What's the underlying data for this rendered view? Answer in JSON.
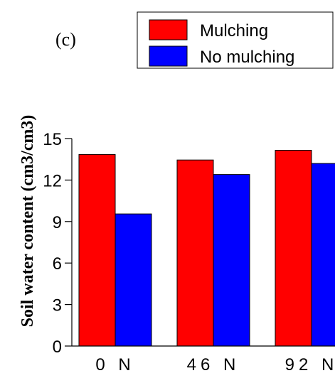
{
  "chart_data": {
    "type": "bar",
    "panel_label": "(c)",
    "title": "",
    "xlabel": "",
    "ylabel": "Soil water content (cm3/cm3)",
    "categories": [
      "0 N",
      "46 N",
      "92 N"
    ],
    "ylim": [
      0,
      15
    ],
    "yticks": [
      "0",
      "3",
      "6",
      "9",
      "12",
      "15"
    ],
    "grid": false,
    "legend_position": "top-right",
    "series": [
      {
        "name": "Mulching",
        "color": "#ff0000",
        "values": [
          13.85,
          13.45,
          14.15
        ]
      },
      {
        "name": "No mulching",
        "color": "#0000ff",
        "values": [
          9.55,
          12.4,
          13.2
        ]
      }
    ]
  }
}
